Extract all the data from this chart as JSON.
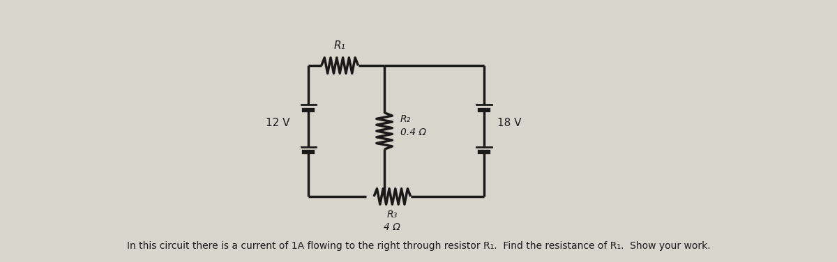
{
  "bg_color": "#d8d5cc",
  "line_color": "#1a1a1a",
  "line_width": 2.5,
  "text_color": "#1a1a1a",
  "font_size_labels": 11,
  "font_size_caption": 10,
  "caption": "In this circuit there is a current of 1A flowing to the right through resistor R₁.  Find the resistance of R₁.  Show your work.",
  "v1_label": "12 V",
  "v2_label": "18 V",
  "r1_label": "R₁",
  "r2_label": "R₂\n0.4 Ω",
  "r3_label": "R₃\n4 Ω"
}
